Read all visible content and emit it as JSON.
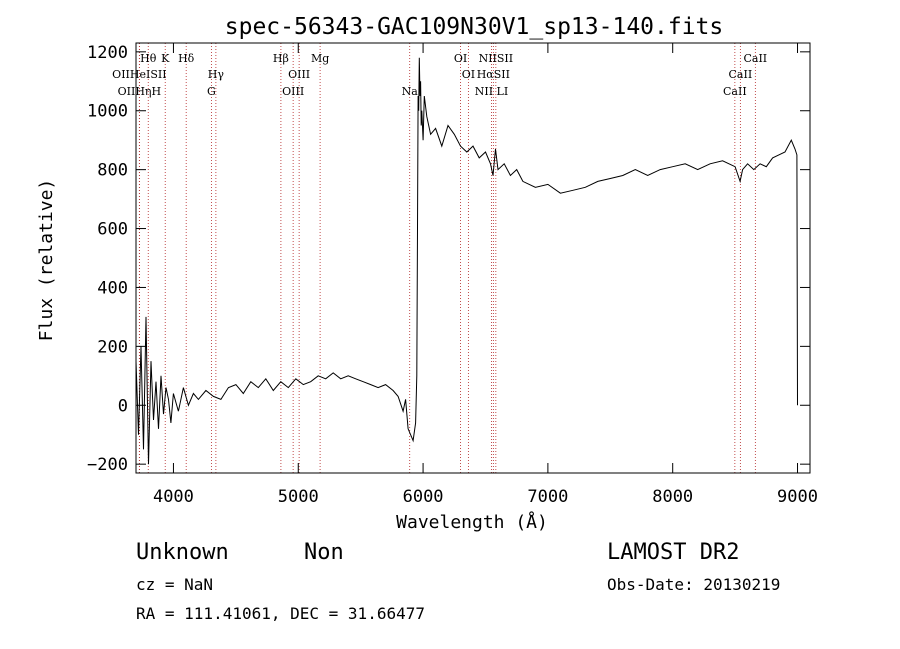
{
  "chart_data": {
    "type": "line",
    "title": "spec-56343-GAC109N30V1_sp13-140.fits",
    "xlabel": "Wavelength (Å)",
    "ylabel": "Flux (relative)",
    "xlim": [
      3700,
      9100
    ],
    "ylim": [
      -230,
      1230
    ],
    "x_ticks": [
      4000,
      5000,
      6000,
      7000,
      8000,
      9000
    ],
    "x_tick_labels": [
      "4000",
      "5000",
      "6000",
      "7000",
      "8000",
      "9000"
    ],
    "y_ticks": [
      -200,
      0,
      200,
      400,
      600,
      800,
      1000,
      1200
    ],
    "y_tick_labels": [
      "−200",
      "0",
      "200",
      "400",
      "600",
      "800",
      "1000",
      "1200"
    ],
    "grid": false,
    "series": [
      {
        "x": [
          3700,
          3720,
          3740,
          3760,
          3780,
          3800,
          3820,
          3840,
          3860,
          3880,
          3900,
          3920,
          3940,
          3960,
          3980,
          4000,
          4040,
          4080,
          4120,
          4160,
          4200,
          4260,
          4320,
          4380,
          4440,
          4500,
          4560,
          4620,
          4680,
          4740,
          4800,
          4860,
          4920,
          4980,
          5040,
          5100,
          5160,
          5220,
          5280,
          5340,
          5400,
          5460,
          5520,
          5580,
          5640,
          5700,
          5760,
          5800,
          5840,
          5860,
          5880,
          5900,
          5920,
          5940,
          5950,
          5955,
          5960,
          5965,
          5970,
          5975,
          5980,
          5985,
          5990,
          6000,
          6010,
          6030,
          6060,
          6100,
          6150,
          6200,
          6250,
          6300,
          6350,
          6400,
          6450,
          6500,
          6540,
          6560,
          6580,
          6600,
          6650,
          6700,
          6750,
          6800,
          6900,
          7000,
          7100,
          7200,
          7300,
          7400,
          7500,
          7600,
          7700,
          7800,
          7900,
          8000,
          8100,
          8200,
          8300,
          8400,
          8500,
          8540,
          8560,
          8600,
          8650,
          8700,
          8750,
          8800,
          8850,
          8900,
          8950,
          8980,
          8995,
          9000
        ],
        "y": [
          150,
          -100,
          200,
          -150,
          300,
          -200,
          150,
          -50,
          80,
          -80,
          100,
          -30,
          60,
          20,
          -60,
          40,
          -20,
          60,
          0,
          40,
          20,
          50,
          30,
          20,
          60,
          70,
          40,
          80,
          60,
          90,
          50,
          80,
          60,
          90,
          70,
          80,
          100,
          90,
          110,
          90,
          100,
          90,
          80,
          70,
          60,
          70,
          50,
          30,
          -20,
          20,
          -80,
          -100,
          -120,
          -60,
          100,
          600,
          1050,
          1000,
          1180,
          1050,
          1100,
          950,
          1000,
          900,
          1050,
          980,
          920,
          940,
          880,
          950,
          920,
          880,
          860,
          880,
          840,
          860,
          820,
          780,
          870,
          800,
          820,
          780,
          800,
          760,
          740,
          750,
          720,
          730,
          740,
          760,
          770,
          780,
          800,
          780,
          800,
          810,
          820,
          800,
          820,
          830,
          810,
          760,
          800,
          820,
          800,
          820,
          810,
          840,
          850,
          860,
          900,
          870,
          850,
          0
        ]
      }
    ],
    "line_markers_top": [
      {
        "label": "Hθ",
        "x": 3798
      },
      {
        "label": "K",
        "x": 3934
      },
      {
        "label": "Hδ",
        "x": 4102
      },
      {
        "label": "Hβ",
        "x": 4861
      },
      {
        "label": "Mg",
        "x": 5175
      },
      {
        "label": "OI",
        "x": 6300
      },
      {
        "label": "NIISII",
        "x": 6583
      },
      {
        "label": "CaII",
        "x": 8662
      }
    ],
    "line_markers_middle": [
      {
        "label": "OIIHeISII",
        "x": 3727
      },
      {
        "label": "Hγ",
        "x": 4340
      },
      {
        "label": "OIII",
        "x": 5007
      },
      {
        "label": "OI",
        "x": 6363
      },
      {
        "label": "HαSII",
        "x": 6563
      },
      {
        "label": "CaII",
        "x": 8542
      }
    ],
    "line_markers_bottom": [
      {
        "label": "OIIHηH",
        "x": 3727
      },
      {
        "label": "G",
        "x": 4304
      },
      {
        "label": "OIII",
        "x": 4959
      },
      {
        "label": "Na",
        "x": 5893
      },
      {
        "label": "NII LI",
        "x": 6548
      },
      {
        "label": "CaII",
        "x": 8498
      }
    ]
  },
  "info": {
    "class": "Unknown",
    "subclass": "Non",
    "survey": "LAMOST DR2",
    "cz": "cz = NaN",
    "obs_date": "Obs-Date: 20130219",
    "coords": "RA = 111.41061, DEC =  31.66477"
  },
  "colors": {
    "spectrum": "#000000",
    "marker_lines": "#b22222",
    "axis": "#000000"
  }
}
